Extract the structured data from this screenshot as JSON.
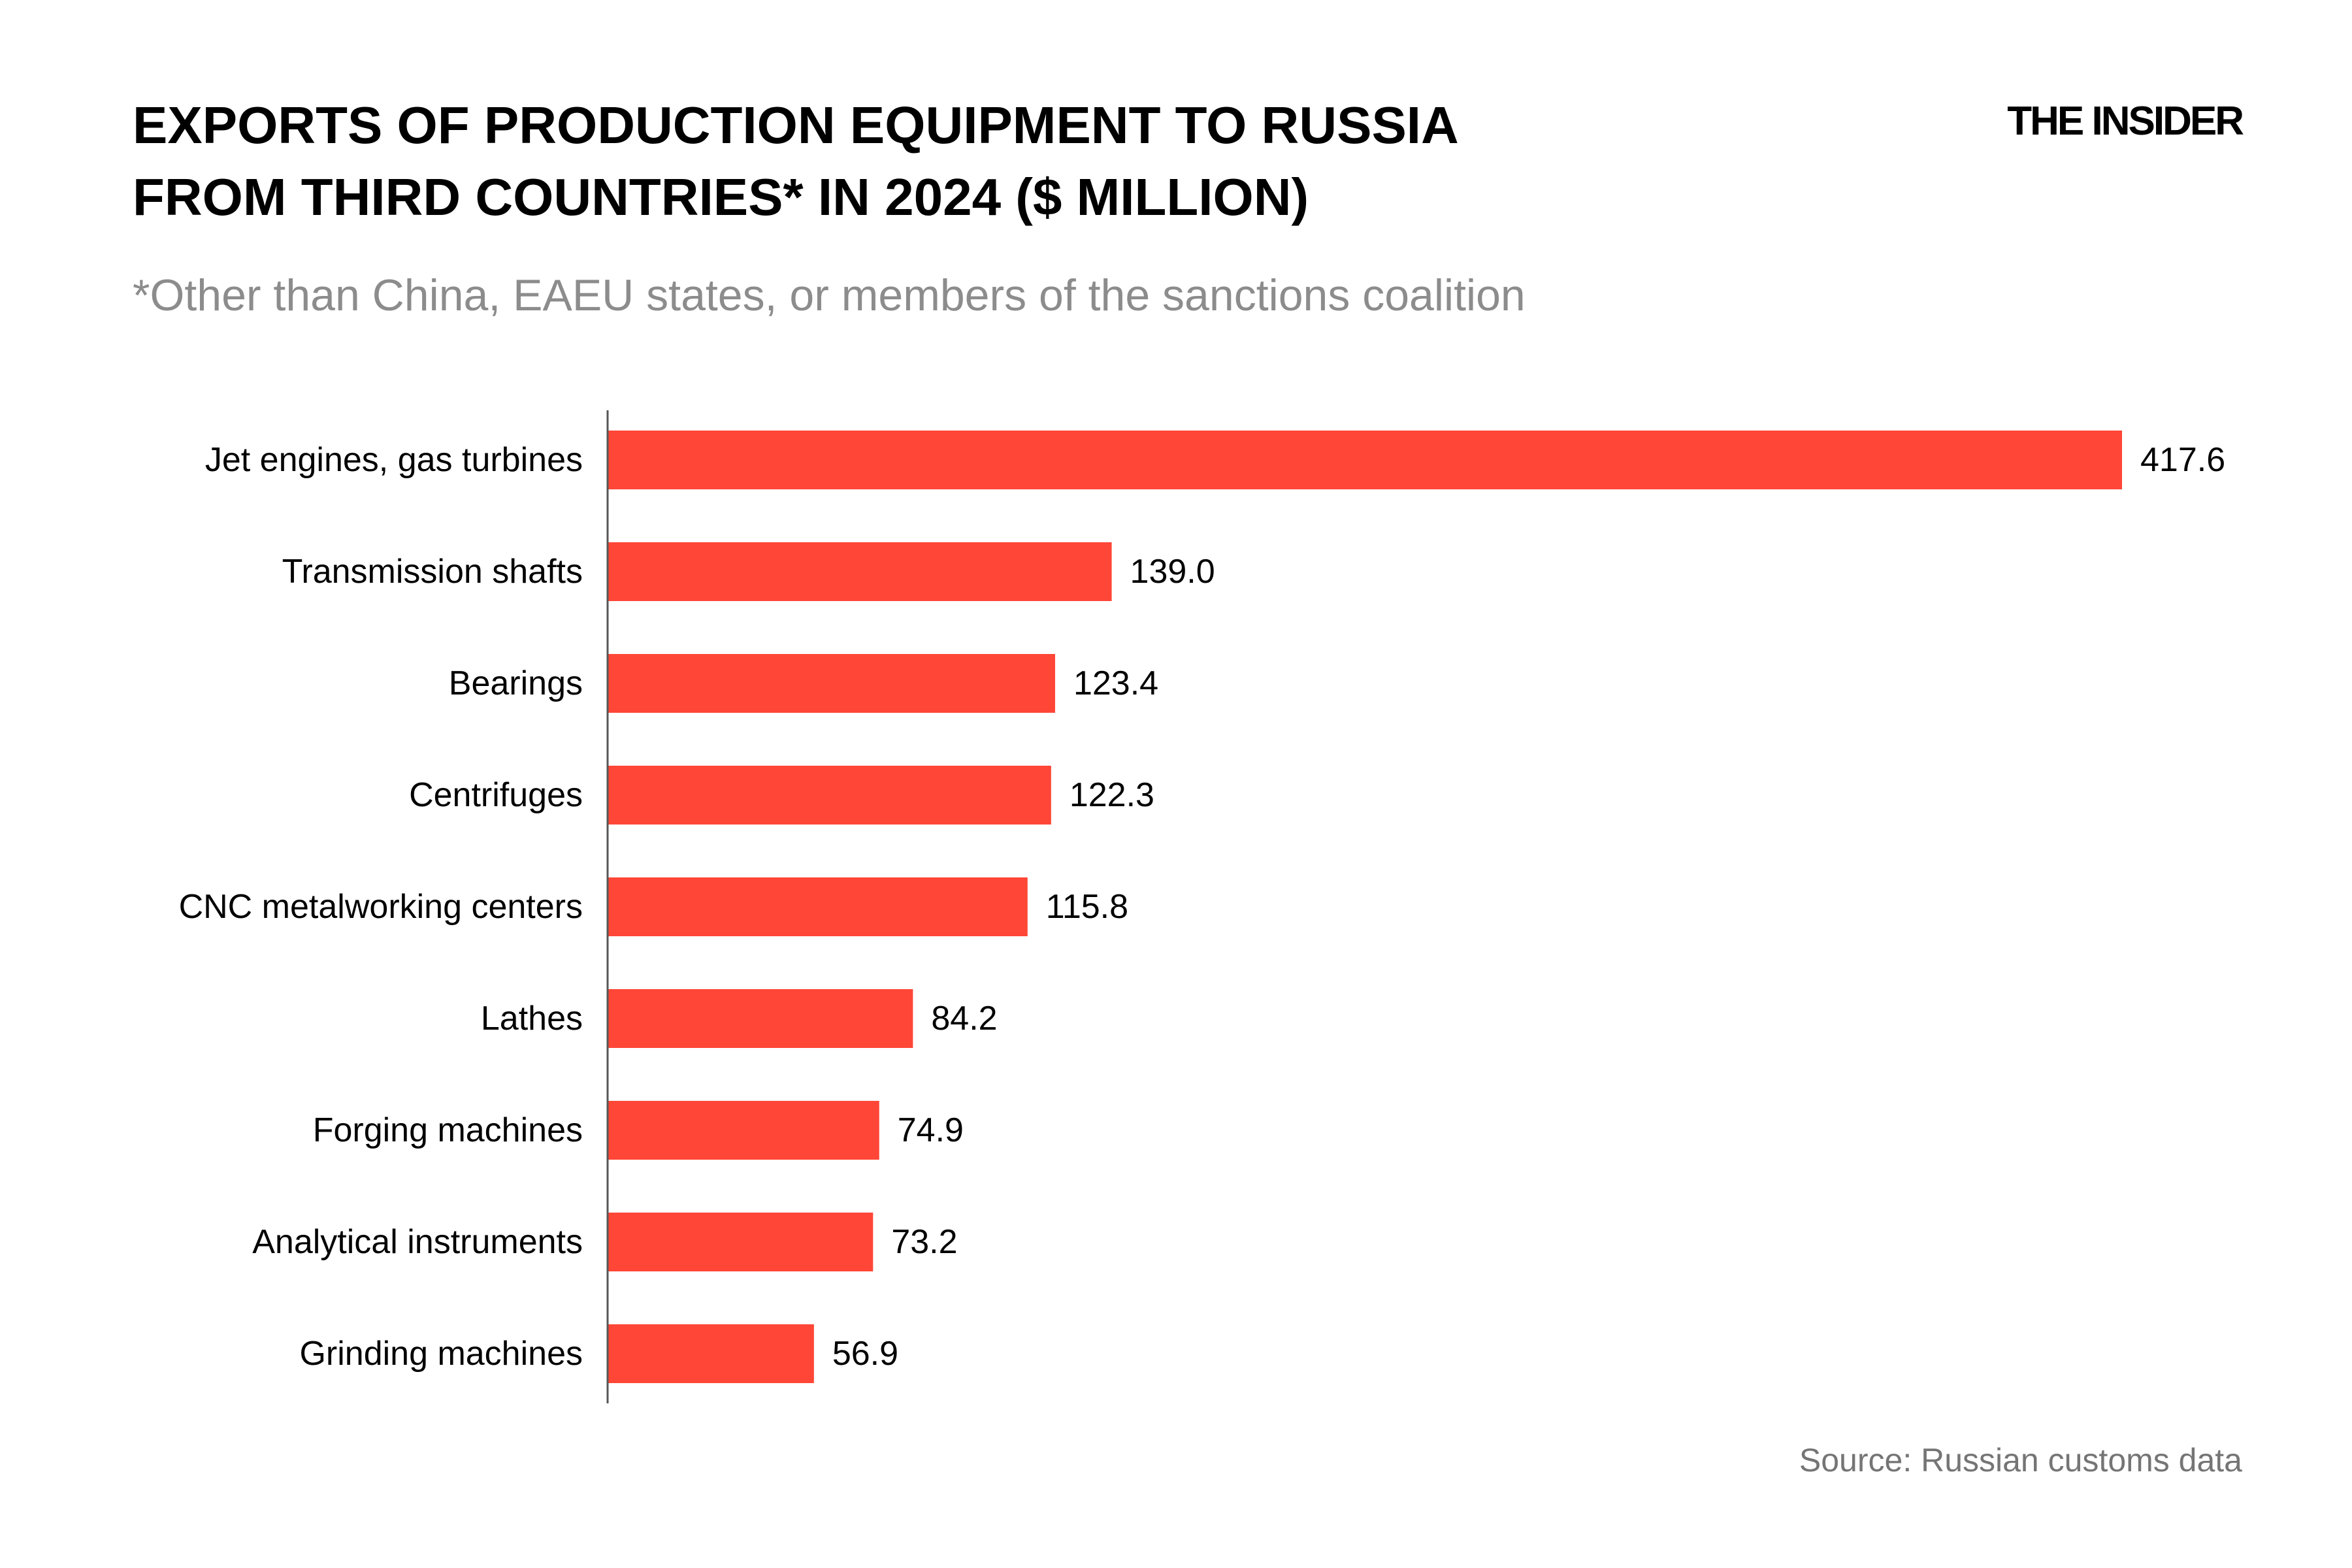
{
  "header": {
    "title_line1": "EXPORTS OF PRODUCTION EQUIPMENT TO RUSSIA",
    "title_line2": "FROM THIRD COUNTRIES* IN 2024 ($ MILLION)",
    "subtitle": "*Other than China, EAEU states, or members of the sanctions coalition",
    "brand": "THE INSIDER"
  },
  "footer": {
    "source": "Source: Russian customs data"
  },
  "colors": {
    "bar": "#ff4637",
    "axis": "#555555",
    "text": "#000000"
  },
  "chart_data": {
    "type": "bar",
    "orientation": "horizontal",
    "categories": [
      "Jet engines, gas turbines",
      "Transmission shafts",
      "Bearings",
      "Centrifuges",
      "CNC metalworking centers",
      "Lathes",
      "Forging machines",
      "Analytical instruments",
      "Grinding machines"
    ],
    "values": [
      417.6,
      139.0,
      123.4,
      122.3,
      115.8,
      84.2,
      74.9,
      73.2,
      56.9
    ],
    "value_labels": [
      "417.6",
      "139.0",
      "123.4",
      "122.3",
      "115.8",
      "84.2",
      "74.9",
      "73.2",
      "56.9"
    ],
    "xlim": [
      0,
      417.6
    ],
    "grid": false,
    "legend": "none"
  }
}
